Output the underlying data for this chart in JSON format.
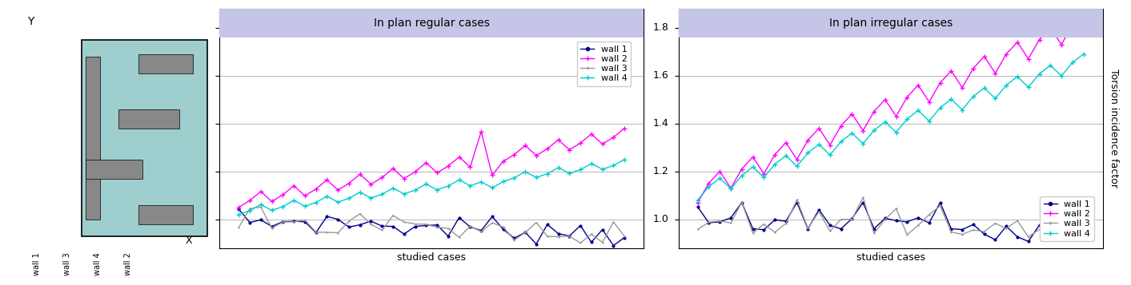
{
  "title_regular": "In plan regular cases",
  "title_irregular": "In plan irregular cases",
  "ylabel": "Torsion incidence factor",
  "xlabel": "studied cases",
  "ylim": [
    0.88,
    1.88
  ],
  "yticks": [
    1.0,
    1.2,
    1.4,
    1.6,
    1.8
  ],
  "ytick_labels": [
    "1.0",
    "1.2",
    "1.4",
    "1.6",
    "1.8"
  ],
  "header_color": "#c5c5e8",
  "wall_labels_ytick": [
    "wall 1",
    "wall 3",
    "wall 4",
    "wall 2",
    "X"
  ],
  "wall_labels": [
    "wall 1",
    "wall 2",
    "wall 3",
    "wall 4"
  ],
  "wall_colors": [
    "#00008b",
    "#ff00ff",
    "#999999",
    "#00cccc"
  ],
  "wall_markers_reg": [
    "o",
    "+",
    "+",
    "+"
  ],
  "wall_markers_irr": [
    "o",
    "+",
    "+",
    "+"
  ],
  "diagram_bg": "#9ecece",
  "wall_rect_color": "#888888",
  "n_regular": 36,
  "n_irregular": 36
}
